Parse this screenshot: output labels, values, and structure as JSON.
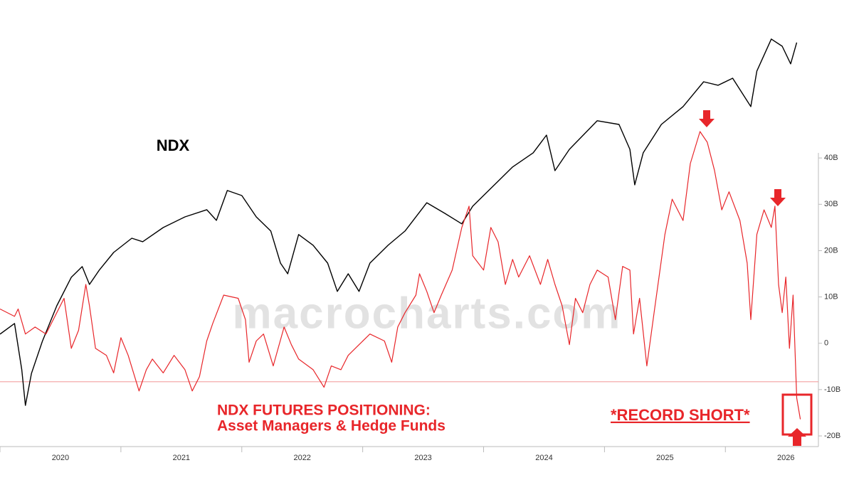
{
  "chart_data": {
    "type": "line",
    "watermark": "macrocharts.com",
    "annotations": [
      "Asset Managers & Hedge Funds",
      "*RECORD SHORT*"
    ],
    "xlim": [
      2020,
      2026.74
    ],
    "xticks": [
      2020,
      2021,
      2022,
      2023,
      2024,
      2025,
      2026
    ],
    "ylim": [
      -22.3,
      74.1
    ],
    "yticks": [
      {
        "value": 40,
        "label": "40B"
      },
      {
        "value": 30,
        "label": "30B"
      },
      {
        "value": 20,
        "label": "20B"
      },
      {
        "value": 10,
        "label": "10B"
      },
      0,
      {
        "value": -10,
        "label": "-10B"
      },
      {
        "value": -20,
        "label": "-20B"
      }
    ],
    "y2lim": [
      4000,
      27000
    ],
    "hline": -8.3,
    "series": [
      {
        "name": "NDX",
        "color": "#000000",
        "axis": "y2",
        "x": [
          2020,
          2020.12,
          2020.18,
          2020.21,
          2020.26,
          2020.35,
          2020.47,
          2020.59,
          2020.68,
          2020.74,
          2020.82,
          2020.94,
          2021.09,
          2021.18,
          2021.35,
          2021.53,
          2021.71,
          2021.79,
          2021.88,
          2022,
          2022.12,
          2022.24,
          2022.32,
          2022.38,
          2022.47,
          2022.59,
          2022.71,
          2022.79,
          2022.88,
          2022.97,
          2023.06,
          2023.21,
          2023.35,
          2023.53,
          2023.68,
          2023.82,
          2023.91,
          2024.06,
          2024.24,
          2024.41,
          2024.52,
          2024.59,
          2024.71,
          2024.94,
          2025.12,
          2025.21,
          2025.25,
          2025.32,
          2025.47,
          2025.65,
          2025.82,
          2025.94,
          2026.06,
          2026.21,
          2026.26,
          2026.38,
          2026.47,
          2026.54,
          2026.59
        ],
        "values": [
          9790,
          10340,
          7960,
          6120,
          7770,
          9420,
          11250,
          12720,
          13270,
          12350,
          13080,
          14000,
          14730,
          14550,
          15280,
          15830,
          16200,
          15650,
          17190,
          16930,
          15830,
          15100,
          13450,
          12900,
          14920,
          14370,
          13450,
          11990,
          12900,
          11990,
          13450,
          14370,
          15100,
          16560,
          16010,
          15470,
          16380,
          17300,
          18400,
          19130,
          20040,
          18210,
          19310,
          20780,
          20590,
          19310,
          17480,
          19130,
          20590,
          21510,
          22790,
          22610,
          22970,
          21510,
          23340,
          24990,
          24620,
          23710,
          24810
        ]
      },
      {
        "name": "NDX FUTURES POSITIONING:",
        "color": "#e8262a",
        "x": [
          2020,
          2020.12,
          2020.15,
          2020.21,
          2020.29,
          2020.38,
          2020.47,
          2020.53,
          2020.59,
          2020.65,
          2020.71,
          2020.74,
          2020.79,
          2020.88,
          2020.94,
          2021,
          2021.06,
          2021.15,
          2021.21,
          2021.26,
          2021.35,
          2021.44,
          2021.53,
          2021.59,
          2021.65,
          2021.71,
          2021.76,
          2021.85,
          2021.97,
          2022.03,
          2022.06,
          2022.12,
          2022.18,
          2022.26,
          2022.35,
          2022.41,
          2022.47,
          2022.59,
          2022.68,
          2022.74,
          2022.82,
          2022.88,
          2022.97,
          2023.06,
          2023.18,
          2023.24,
          2023.29,
          2023.35,
          2023.44,
          2023.47,
          2023.53,
          2023.59,
          2023.65,
          2023.74,
          2023.82,
          2023.88,
          2023.91,
          2024,
          2024.06,
          2024.12,
          2024.18,
          2024.24,
          2024.29,
          2024.38,
          2024.47,
          2024.53,
          2024.59,
          2024.65,
          2024.71,
          2024.76,
          2024.82,
          2024.88,
          2024.94,
          2025.03,
          2025.09,
          2025.15,
          2025.21,
          2025.24,
          2025.29,
          2025.35,
          2025.41,
          2025.5,
          2025.56,
          2025.65,
          2025.71,
          2025.79,
          2025.85,
          2025.91,
          2025.97,
          2026.03,
          2026.12,
          2026.18,
          2026.21,
          2026.26,
          2026.32,
          2026.38,
          2026.41,
          2026.44,
          2026.47,
          2026.5,
          2026.53,
          2026.56,
          2026.59,
          2026.62
        ],
        "values": [
          7.4,
          5.8,
          7.4,
          2.0,
          3.5,
          2.0,
          6.6,
          9.7,
          -1.1,
          2.8,
          12.7,
          8.1,
          -1.1,
          -2.6,
          -6.4,
          1.2,
          -2.6,
          -10.3,
          -5.7,
          -3.4,
          -6.4,
          -2.6,
          -5.7,
          -10.3,
          -7.2,
          0.5,
          4.3,
          10.4,
          9.7,
          5.1,
          -4.1,
          0.5,
          2.0,
          -4.9,
          3.5,
          -0.3,
          -3.4,
          -5.7,
          -9.5,
          -4.9,
          -5.7,
          -2.6,
          -0.3,
          2.0,
          0.5,
          -4.1,
          3.5,
          6.6,
          10.4,
          15.0,
          11.2,
          6.6,
          10.4,
          15.8,
          25.0,
          29.6,
          18.9,
          15.8,
          25.0,
          21.9,
          12.7,
          18.1,
          14.3,
          18.9,
          12.7,
          18.1,
          12.7,
          8.1,
          -0.3,
          9.7,
          6.6,
          12.7,
          15.8,
          14.3,
          5.1,
          16.6,
          15.8,
          2.0,
          9.7,
          -4.9,
          6.6,
          23.5,
          31.1,
          26.5,
          38.8,
          45.7,
          43.4,
          37.3,
          28.8,
          32.7,
          26.5,
          17.3,
          5.1,
          23.5,
          28.8,
          25.0,
          29.6,
          12.7,
          6.6,
          14.3,
          -1.1,
          10.4,
          -11.8,
          -16.4
        ]
      }
    ]
  }
}
